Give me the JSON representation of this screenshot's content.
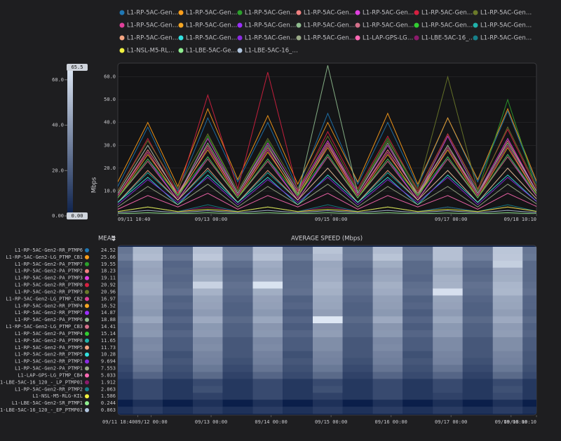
{
  "chart_data": {
    "type": "line",
    "y_label": "Mbps",
    "xlim": [
      "09/11 10:40",
      "09/18 10:10"
    ],
    "xticks": [
      "09/11 10:40",
      "09/13 00:00",
      "09/15 00:00",
      "09/17 00:00",
      "09/18 10:10"
    ],
    "ylim": [
      0,
      66
    ],
    "yticks": [
      {
        "value": 10,
        "label": "10.0"
      },
      {
        "value": 20,
        "label": "20.0"
      },
      {
        "value": 30,
        "label": "30.0"
      },
      {
        "value": 40,
        "label": "40.0"
      },
      {
        "value": 50,
        "label": "50.0"
      },
      {
        "value": 60,
        "label": "60.0"
      }
    ],
    "colorbar": {
      "max": 65.5,
      "min": {
        "value": 0,
        "label": "0.00"
      },
      "ticks": [
        {
          "value": 0,
          "label": "0.00"
        },
        {
          "value": 20,
          "label": "20.0"
        },
        {
          "value": 40,
          "label": "40.0"
        },
        {
          "value": 60,
          "label": "60.0"
        }
      ]
    },
    "heatmap": {
      "title": "AVERAGE SPEED (Mbps)",
      "mean_header": "MEAN",
      "xticks": [
        "09/11 18:40",
        "09/12 00:00",
        "09/13 00:00",
        "09/14 00:00",
        "09/15 00:00",
        "09/16 00:00",
        "09/17 00:00",
        "09/18 00:00",
        "09/18 10:10"
      ]
    },
    "x": [
      "09/11 10:40",
      "09/11 22:40",
      "09/12 10:40",
      "09/12 22:40",
      "09/13 10:40",
      "09/13 22:40",
      "09/14 10:40",
      "09/14 22:40",
      "09/15 10:40",
      "09/15 22:40",
      "09/16 10:40",
      "09/16 22:40",
      "09/17 10:40",
      "09/17 22:40",
      "09/18 10:40"
    ],
    "series": [
      {
        "name": "L1-RP-5AC-Gen2-RR_PTMP6",
        "legend_label": "L1-RP-5AC-Gen…",
        "color": "#1f77b4",
        "mean": 24.52,
        "values": [
          12,
          38,
          10,
          42,
          14,
          40,
          11,
          44,
          13,
          40,
          12,
          42,
          14,
          45,
          12
        ]
      },
      {
        "name": "L1-RP-5AC-Gen2-LG_PTMP_CB1",
        "legend_label": "L1-RP-5AC-Gen…",
        "color": "#ff9f1a",
        "mean": 25.66,
        "values": [
          14,
          40,
          12,
          46,
          15,
          43,
          13,
          40,
          14,
          44,
          13,
          42,
          15,
          46,
          13
        ]
      },
      {
        "name": "L1-RP-5AC-Gen2-PA_PTMP7",
        "legend_label": "L1-RP-5AC-Gen…",
        "color": "#2ca02c",
        "mean": 19.55,
        "values": [
          9,
          30,
          8,
          34,
          10,
          32,
          9,
          30,
          10,
          33,
          9,
          35,
          10,
          50,
          9
        ]
      },
      {
        "name": "L1-RP-5AC-Gen2-PA_PTMP2",
        "legend_label": "L1-RP-5AC-Gen…",
        "color": "#f08080",
        "mean": 18.23,
        "values": [
          8,
          28,
          9,
          30,
          8,
          29,
          9,
          31,
          8,
          28,
          9,
          30,
          8,
          32,
          9
        ]
      },
      {
        "name": "L1-RP-5AC-Gen2-PA_PTMP3",
        "legend_label": "L1-RP-5AC-Gen…",
        "color": "#e040e0",
        "mean": 19.11,
        "values": [
          9,
          30,
          8,
          33,
          9,
          31,
          10,
          32,
          9,
          30,
          8,
          34,
          9,
          33,
          9
        ]
      },
      {
        "name": "L1-RP-5AC-Gen2-RR_PTMP8",
        "legend_label": "L1-RP-5AC-Gen…",
        "color": "#d62040",
        "mean": 20.92,
        "values": [
          10,
          33,
          9,
          52,
          11,
          62,
          10,
          36,
          11,
          34,
          10,
          35,
          11,
          37,
          10
        ]
      },
      {
        "name": "L1-RP-5AC-Gen2-RR_PTMP3",
        "legend_label": "L1-RP-5AC-Gen…",
        "color": "#6b7a2a",
        "mean": 20.96,
        "values": [
          10,
          32,
          11,
          35,
          10,
          33,
          11,
          34,
          10,
          32,
          11,
          60,
          10,
          38,
          11
        ]
      },
      {
        "name": "L1-RP-5AC-Gen2-LG_PTMP_CB2",
        "legend_label": "L1-RP-5AC-Gen…",
        "color": "#e0409a",
        "mean": 16.97,
        "values": [
          8,
          27,
          7,
          29,
          8,
          28,
          7,
          30,
          8,
          27,
          7,
          29,
          8,
          30,
          8
        ]
      },
      {
        "name": "L1-RP-5AC-Gen2-RR_PTMP4",
        "legend_label": "L1-RP-5AC-Gen…",
        "color": "#f5a623",
        "mean": 16.52,
        "values": [
          7,
          26,
          8,
          28,
          7,
          27,
          8,
          29,
          7,
          26,
          8,
          28,
          7,
          29,
          8
        ]
      },
      {
        "name": "L1-RP-5AC-Gen2-RR_PTMP7",
        "legend_label": "L1-RP-5AC-Gen…",
        "color": "#9b30ff",
        "mean": 14.87,
        "values": [
          7,
          24,
          6,
          25,
          7,
          24,
          6,
          26,
          7,
          24,
          6,
          25,
          7,
          26,
          7
        ]
      },
      {
        "name": "L1-RP-5AC-Gen2-PA_PTMP6",
        "legend_label": "L1-RP-5AC-Gen…",
        "color": "#8fbc8f",
        "mean": 18.88,
        "values": [
          9,
          30,
          8,
          31,
          9,
          30,
          8,
          65,
          9,
          31,
          8,
          30,
          9,
          31,
          9
        ]
      },
      {
        "name": "L1-RP-5AC-Gen2-LG_PTMP_CB3",
        "legend_label": "L1-RP-5AC-Gen…",
        "color": "#d4708a",
        "mean": 14.41,
        "values": [
          7,
          23,
          6,
          24,
          7,
          23,
          6,
          25,
          7,
          23,
          6,
          24,
          7,
          25,
          7
        ]
      },
      {
        "name": "L1-RP-5AC-Gen2-PA_PTMP4",
        "legend_label": "L1-RP-5AC-Gen…",
        "color": "#32cd32",
        "mean": 15.14,
        "values": [
          7,
          24,
          8,
          25,
          7,
          24,
          8,
          26,
          7,
          24,
          8,
          25,
          7,
          26,
          8
        ]
      },
      {
        "name": "L1-RP-5AC-Gen2-PA_PTMP8",
        "legend_label": "L1-RP-5AC-Gen…",
        "color": "#20b2aa",
        "mean": 11.65,
        "values": [
          5,
          18,
          6,
          19,
          5,
          18,
          6,
          20,
          5,
          18,
          6,
          19,
          5,
          20,
          6
        ]
      },
      {
        "name": "L1-RP-5AC-Gen2-PA_PTMP5",
        "legend_label": "L1-RP-5AC-Gen…",
        "color": "#f4a582",
        "mean": 11.73,
        "values": [
          5,
          19,
          6,
          20,
          5,
          19,
          6,
          20,
          5,
          19,
          6,
          19,
          5,
          20,
          6
        ]
      },
      {
        "name": "L1-RP-5AC-Gen2-RR_PTMP5",
        "legend_label": "L1-RP-5AC-Gen…",
        "color": "#33e0e0",
        "mean": 10.28,
        "values": [
          5,
          16,
          4,
          17,
          5,
          16,
          4,
          17,
          5,
          16,
          4,
          17,
          5,
          17,
          5
        ]
      },
      {
        "name": "L1-RP-5AC-Gen2-RR_PTMP1",
        "legend_label": "L1-RP-5AC-Gen…",
        "color": "#8a2be2",
        "mean": 9.694,
        "values": [
          4,
          15,
          5,
          16,
          4,
          15,
          5,
          16,
          4,
          15,
          5,
          16,
          4,
          16,
          5
        ]
      },
      {
        "name": "L1-RP-5AC-Gen2-PA_PTMP1",
        "legend_label": "L1-RP-5AC-Gen…",
        "color": "#9aaa88",
        "mean": 7.553,
        "values": [
          3,
          12,
          4,
          13,
          3,
          12,
          4,
          13,
          3,
          12,
          4,
          12,
          3,
          13,
          4
        ]
      },
      {
        "name": "L1-LAP-GPS-LG_PTMP_CB4",
        "legend_label": "L1-LAP-GPS-LG…",
        "color": "#ff69b4",
        "mean": 5.033,
        "values": [
          2,
          8,
          3,
          9,
          2,
          8,
          3,
          9,
          2,
          8,
          3,
          8,
          2,
          9,
          3
        ]
      },
      {
        "name": "L1-LBE-5AC-16_120_-_LP_PTMP01",
        "legend_label": "L1-LBE-5AC-16_…",
        "color": "#8b1a6b",
        "mean": 1.912,
        "values": [
          1,
          3,
          1,
          3,
          1,
          3,
          1,
          3,
          1,
          3,
          1,
          3,
          1,
          3,
          1
        ]
      },
      {
        "name": "L1-RP-5AC-Gen2-RR_PTMP2",
        "legend_label": "L1-RP-5AC-Gen…",
        "color": "#16808a",
        "mean": 2.063,
        "values": [
          1,
          3,
          1,
          4,
          1,
          3,
          1,
          4,
          1,
          3,
          1,
          3,
          1,
          4,
          1
        ]
      },
      {
        "name": "L1-NSL-M5-RLG-KIL",
        "legend_label": "L1-NSL-M5-RL…",
        "color": "#f0f040",
        "mean": 1.586,
        "values": [
          1,
          3,
          1,
          2,
          1,
          3,
          1,
          2,
          1,
          3,
          1,
          2,
          1,
          3,
          1
        ]
      },
      {
        "name": "L1-LBE-5AC-Gen2-SR_PTMP1",
        "legend_label": "L1-LBE-5AC-Ge…",
        "color": "#90ee90",
        "mean": 0.244,
        "values": [
          0,
          0.5,
          0,
          0.5,
          0,
          0.5,
          0,
          0.5,
          0,
          0.5,
          0,
          0.4,
          0,
          0.5,
          0
        ]
      },
      {
        "name": "L1-LBE-5AC-16_120_-_EP_PTMP01",
        "legend_label": "L1-LBE-5AC-16_…",
        "color": "#b0c4de",
        "mean": 0.863,
        "values": [
          0.5,
          1.5,
          0.5,
          1.4,
          0.5,
          1.5,
          0.5,
          1.4,
          0.5,
          1.5,
          0.5,
          1.4,
          0.5,
          1.5,
          0.5
        ]
      }
    ]
  }
}
